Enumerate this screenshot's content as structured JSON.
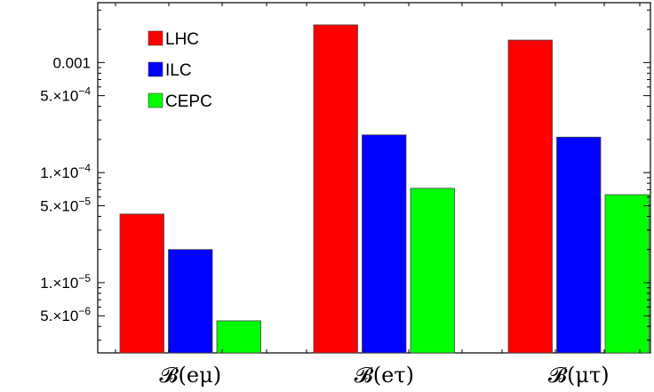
{
  "chart_data": {
    "type": "bar",
    "scale": "log",
    "categories": [
      "𝓑(eμ)",
      "𝓑(eτ)",
      "𝓑(μτ)"
    ],
    "series": [
      {
        "name": "LHC",
        "color": "#ff0000",
        "values": [
          4.2e-05,
          0.0022,
          0.0016
        ]
      },
      {
        "name": "ILC",
        "color": "#0000ff",
        "values": [
          2e-05,
          0.00022,
          0.00021
        ]
      },
      {
        "name": "CEPC",
        "color": "#00ff00",
        "values": [
          4.5e-06,
          7.2e-05,
          6.3e-05
        ]
      }
    ],
    "ylim": [
      2.3e-06,
      0.0035
    ],
    "yticks": [
      {
        "value": 0.001,
        "mantissa": "0.001",
        "exp": ""
      },
      {
        "value": 0.0005,
        "mantissa": "5.×10",
        "exp": "−4"
      },
      {
        "value": 0.0001,
        "mantissa": "1.×10",
        "exp": "−4"
      },
      {
        "value": 5e-05,
        "mantissa": "5.×10",
        "exp": "−5"
      },
      {
        "value": 1e-05,
        "mantissa": "1.×10",
        "exp": "−5"
      },
      {
        "value": 5e-06,
        "mantissa": "5.×10",
        "exp": "−6"
      }
    ],
    "legend_position": "top-left",
    "grid": false
  }
}
